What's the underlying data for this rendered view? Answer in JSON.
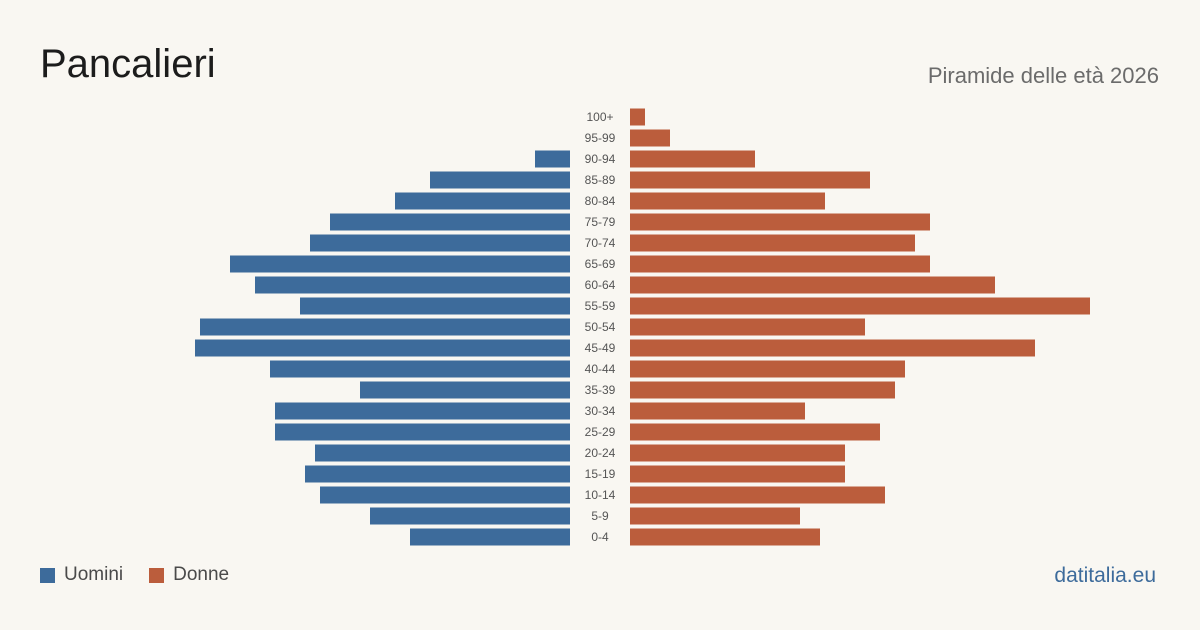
{
  "header": {
    "title": "Pancalieri",
    "subtitle": "Piramide delle età 2026"
  },
  "legend": {
    "men_label": "Uomini",
    "women_label": "Donne"
  },
  "brand": "datitalia.eu",
  "colors": {
    "men": "#3d6b9b",
    "women": "#bb5d3c",
    "background": "#f9f7f2"
  },
  "chart_data": {
    "type": "bar",
    "orientation": "horizontal-pyramid",
    "categories": [
      "100+",
      "95-99",
      "90-94",
      "85-89",
      "80-84",
      "75-79",
      "70-74",
      "65-69",
      "60-64",
      "55-59",
      "50-54",
      "45-49",
      "40-44",
      "35-39",
      "30-34",
      "25-29",
      "20-24",
      "15-19",
      "10-14",
      "5-9",
      "0-4"
    ],
    "series": [
      {
        "name": "Uomini",
        "values": [
          0,
          0,
          7,
          28,
          35,
          48,
          52,
          68,
          63,
          54,
          74,
          75,
          60,
          42,
          59,
          59,
          51,
          53,
          50,
          40,
          32
        ]
      },
      {
        "name": "Donne",
        "values": [
          3,
          8,
          25,
          48,
          39,
          60,
          57,
          60,
          73,
          92,
          47,
          81,
          55,
          53,
          35,
          50,
          43,
          43,
          51,
          34,
          38
        ]
      }
    ],
    "xlim": [
      0,
      93
    ]
  }
}
